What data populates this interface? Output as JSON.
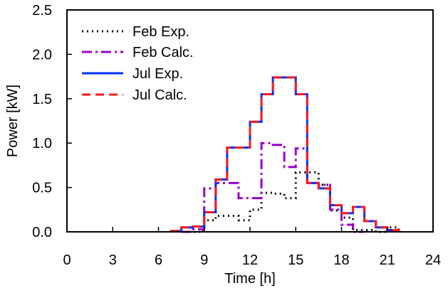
{
  "chart_data": {
    "type": "line",
    "xlabel": "Time [h]",
    "ylabel": "Power [kW]",
    "xlim": [
      0,
      24
    ],
    "ylim": [
      0,
      2.5
    ],
    "xticks": [
      0,
      3,
      6,
      9,
      12,
      15,
      18,
      21,
      24
    ],
    "xtick_labels": [
      "0",
      "3",
      "6",
      "9",
      "12",
      "15",
      "18",
      "21",
      "24"
    ],
    "yticks": [
      0,
      0.5,
      1.0,
      1.5,
      2.0,
      2.5
    ],
    "ytick_labels": [
      "0.0",
      "0.5",
      "1.0",
      "1.5",
      "2.0",
      "2.5"
    ],
    "grid": false,
    "legend_position": "top-left",
    "series": [
      {
        "name": "Feb Exp.",
        "style": "dotted",
        "color": "#000000",
        "x": [
          8.0,
          8.75,
          9.0,
          9.75,
          10.5,
          11.25,
          12.0,
          12.75,
          13.5,
          14.25,
          15.0,
          15.75,
          16.5,
          17.25,
          18.0,
          18.75,
          20.25,
          21.0,
          21.75
        ],
        "y": [
          0.0,
          0.02,
          0.13,
          0.18,
          0.18,
          0.13,
          0.25,
          0.44,
          0.43,
          0.38,
          0.67,
          0.67,
          0.53,
          0.24,
          0.16,
          0.02,
          0.0,
          0.05,
          0.0
        ]
      },
      {
        "name": "Feb Calc.",
        "style": "dash-dot",
        "color": "#9900cc",
        "x": [
          7.5,
          8.25,
          9.0,
          9.75,
          10.5,
          11.25,
          12.0,
          12.75,
          13.5,
          14.25,
          15.0,
          15.75,
          16.5,
          17.25,
          18.0,
          18.75,
          19.5
        ],
        "y": [
          0.0,
          0.03,
          0.49,
          0.55,
          0.55,
          0.38,
          0.38,
          1.0,
          0.98,
          0.73,
          0.94,
          0.55,
          0.53,
          0.25,
          0.08,
          0.0,
          0.0
        ]
      },
      {
        "name": "Jul Exp.",
        "style": "solid",
        "color": "#0033ff",
        "x": [
          6.75,
          7.5,
          8.25,
          9.0,
          9.75,
          10.5,
          11.25,
          12.0,
          12.75,
          13.5,
          14.25,
          15.0,
          15.75,
          16.5,
          17.25,
          18.0,
          18.75,
          19.5,
          20.25,
          21.0,
          21.75
        ],
        "y": [
          0.01,
          0.05,
          0.06,
          0.22,
          0.59,
          0.95,
          0.95,
          1.24,
          1.55,
          1.74,
          1.74,
          1.55,
          0.55,
          0.49,
          0.3,
          0.21,
          0.28,
          0.12,
          0.05,
          0.02,
          0.0
        ]
      },
      {
        "name": "Jul Calc.",
        "style": "dashed",
        "color": "#ff1a1a",
        "x": [
          6.75,
          7.5,
          8.25,
          9.0,
          9.75,
          10.5,
          11.25,
          12.0,
          12.75,
          13.5,
          14.25,
          15.0,
          15.75,
          16.5,
          17.25,
          18.0,
          18.75,
          19.5,
          20.25,
          21.0,
          21.75
        ],
        "y": [
          0.01,
          0.05,
          0.06,
          0.22,
          0.59,
          0.95,
          0.95,
          1.24,
          1.55,
          1.74,
          1.74,
          1.55,
          0.55,
          0.49,
          0.3,
          0.21,
          0.28,
          0.12,
          0.05,
          0.02,
          0.0
        ]
      }
    ]
  }
}
